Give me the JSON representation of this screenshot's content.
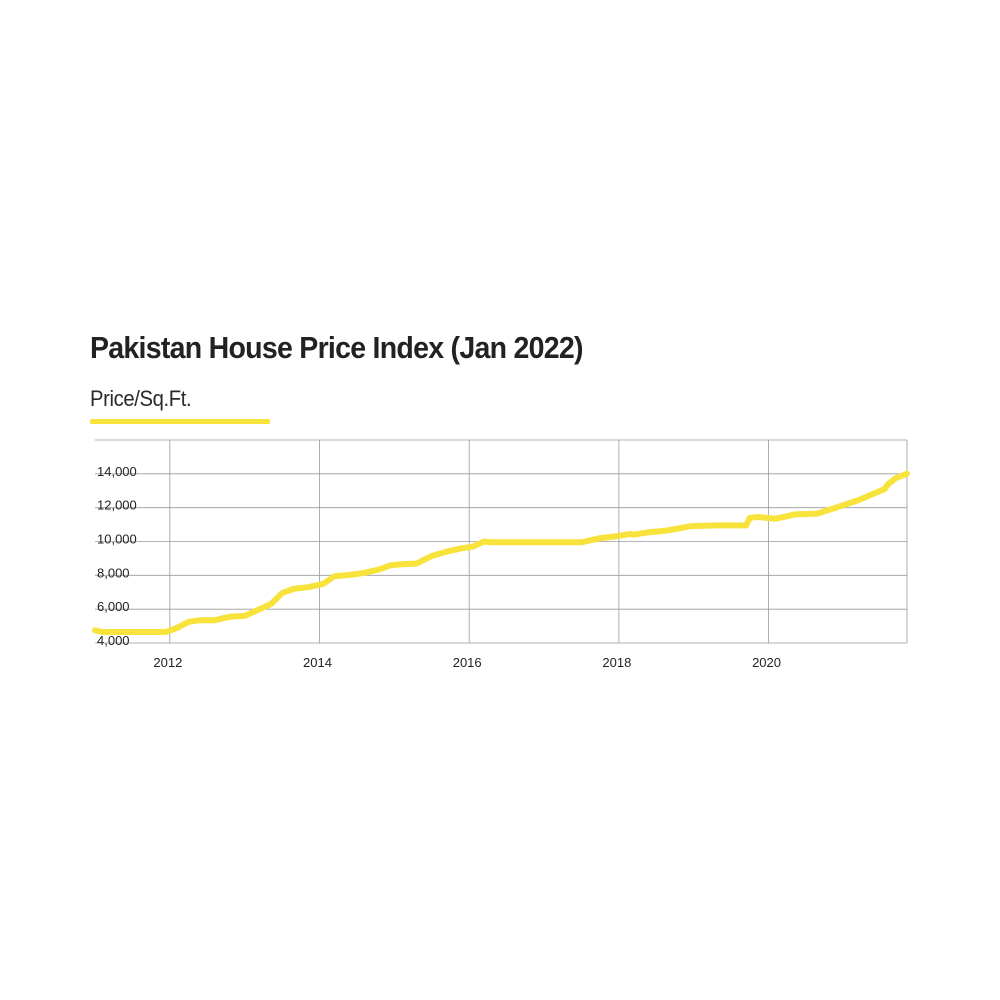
{
  "chart_data": {
    "type": "line",
    "title": "Pakistan House Price Index (Jan 2022)",
    "ylabel": "Price/Sq.Ft.",
    "xlabel": "",
    "xlim": [
      2011.0,
      2021.85
    ],
    "ylim": [
      4000,
      16000
    ],
    "x_ticks": [
      {
        "value": 2012,
        "label": "2012"
      },
      {
        "value": 2014,
        "label": "2014"
      },
      {
        "value": 2016,
        "label": "2016"
      },
      {
        "value": 2018,
        "label": "2018"
      },
      {
        "value": 2020,
        "label": "2020"
      }
    ],
    "y_ticks": [
      {
        "value": 4000,
        "label": "4,000"
      },
      {
        "value": 6000,
        "label": "6,000"
      },
      {
        "value": 8000,
        "label": "8,000"
      },
      {
        "value": 10000,
        "label": "10,000"
      },
      {
        "value": 12000,
        "label": "12,000"
      },
      {
        "value": 14000,
        "label": "14,000"
      }
    ],
    "grid": true,
    "legend": "none",
    "line_color": "#f8e23c",
    "series": [
      {
        "x": [
          2011.0,
          2011.1,
          2011.3,
          2011.6,
          2011.95,
          2012.1,
          2012.25,
          2012.4,
          2012.6,
          2012.75,
          2012.8,
          2013.0,
          2013.2,
          2013.35,
          2013.5,
          2013.65,
          2013.85,
          2014.05,
          2014.2,
          2014.35,
          2014.45,
          2014.6,
          2014.8,
          2014.95,
          2015.1,
          2015.3,
          2015.5,
          2015.7,
          2015.9,
          2016.05,
          2016.2,
          2016.3,
          2016.6,
          2017.0,
          2017.5,
          2017.75,
          2017.95,
          2018.15,
          2018.2,
          2018.4,
          2018.65,
          2018.95,
          2019.3,
          2019.7,
          2019.75,
          2019.85,
          2020.1,
          2020.35,
          2020.65,
          2020.9,
          2021.2,
          2021.55,
          2021.6,
          2021.7,
          2021.85
        ],
        "y": [
          4750,
          4650,
          4650,
          4650,
          4650,
          4900,
          5250,
          5350,
          5350,
          5500,
          5550,
          5600,
          6000,
          6300,
          6950,
          7200,
          7300,
          7500,
          7950,
          8000,
          8050,
          8150,
          8350,
          8600,
          8650,
          8700,
          9150,
          9400,
          9600,
          9700,
          10000,
          9950,
          9950,
          9950,
          9950,
          10200,
          10300,
          10450,
          10400,
          10550,
          10650,
          10900,
          10950,
          10950,
          11400,
          11450,
          11350,
          11600,
          11650,
          12000,
          12450,
          13100,
          13400,
          13750,
          14000
        ]
      }
    ]
  }
}
